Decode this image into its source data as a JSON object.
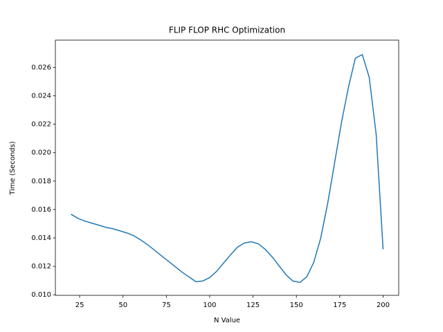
{
  "chart_data": {
    "type": "line",
    "title": "FLIP FLOP RHC Optimization",
    "x_label": "N Value",
    "y_label": "Time (Seconds)",
    "x": [
      20,
      24,
      28,
      32,
      36,
      40,
      44,
      48,
      52,
      56,
      60,
      64,
      68,
      72,
      76,
      80,
      84,
      88,
      92,
      96,
      100,
      104,
      108,
      112,
      116,
      120,
      124,
      128,
      132,
      136,
      140,
      144,
      148,
      152,
      156,
      160,
      164,
      168,
      172,
      176,
      180,
      184,
      188,
      192,
      196,
      200
    ],
    "series": [
      {
        "name": "FLIP FLOP",
        "color": "#1f77b4",
        "values": [
          0.01567,
          0.01538,
          0.01519,
          0.01504,
          0.0149,
          0.01475,
          0.01465,
          0.01451,
          0.01436,
          0.01417,
          0.01388,
          0.01354,
          0.01315,
          0.01276,
          0.01238,
          0.01199,
          0.0116,
          0.01126,
          0.01092,
          0.01097,
          0.01121,
          0.01165,
          0.01223,
          0.01281,
          0.01335,
          0.01364,
          0.01373,
          0.01359,
          0.0132,
          0.01267,
          0.01204,
          0.01141,
          0.01097,
          0.01087,
          0.01126,
          0.01228,
          0.01398,
          0.0164,
          0.01926,
          0.02212,
          0.02459,
          0.02665,
          0.0269,
          0.0253,
          0.0213,
          0.0132
        ]
      }
    ],
    "xlim": [
      11,
      209
    ],
    "ylim": [
      0.00996,
      0.02792
    ],
    "xticks": [
      25,
      50,
      75,
      100,
      125,
      150,
      175,
      200
    ],
    "yticks": [
      {
        "value": 0.01,
        "label": "0.010"
      },
      {
        "value": 0.012,
        "label": "0.012"
      },
      {
        "value": 0.014,
        "label": "0.014"
      },
      {
        "value": 0.016,
        "label": "0.016"
      },
      {
        "value": 0.018,
        "label": "0.018"
      },
      {
        "value": 0.02,
        "label": "0.020"
      },
      {
        "value": 0.022,
        "label": "0.022"
      },
      {
        "value": 0.024,
        "label": "0.024"
      },
      {
        "value": 0.026,
        "label": "0.026"
      }
    ],
    "grid": false
  }
}
